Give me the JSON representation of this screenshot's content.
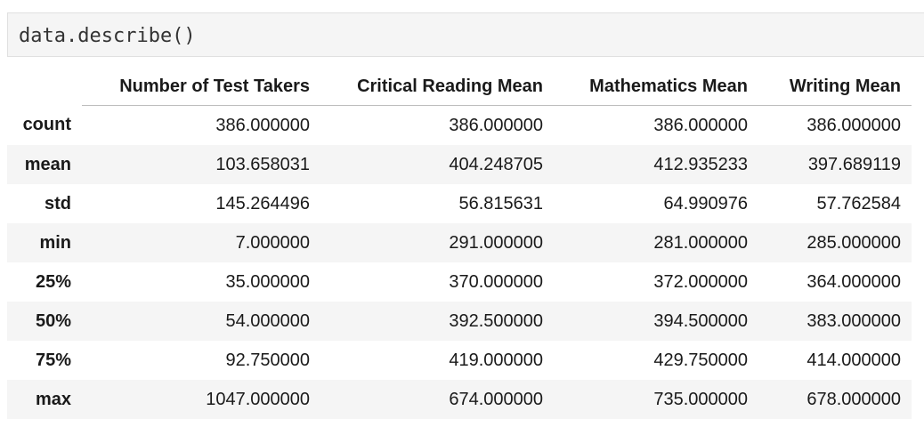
{
  "code_cell": {
    "source": "data.describe()"
  },
  "dataframe": {
    "columns": [
      "Number of Test Takers",
      "Critical Reading Mean",
      "Mathematics Mean",
      "Writing Mean"
    ],
    "rows": [
      {
        "index": "count",
        "values": [
          "386.000000",
          "386.000000",
          "386.000000",
          "386.000000"
        ]
      },
      {
        "index": "mean",
        "values": [
          "103.658031",
          "404.248705",
          "412.935233",
          "397.689119"
        ]
      },
      {
        "index": "std",
        "values": [
          "145.264496",
          "56.815631",
          "64.990976",
          "57.762584"
        ]
      },
      {
        "index": "min",
        "values": [
          "7.000000",
          "291.000000",
          "281.000000",
          "285.000000"
        ]
      },
      {
        "index": "25%",
        "values": [
          "35.000000",
          "370.000000",
          "372.000000",
          "364.000000"
        ]
      },
      {
        "index": "50%",
        "values": [
          "54.000000",
          "392.500000",
          "394.500000",
          "383.000000"
        ]
      },
      {
        "index": "75%",
        "values": [
          "92.750000",
          "419.000000",
          "429.750000",
          "414.000000"
        ]
      },
      {
        "index": "max",
        "values": [
          "1047.000000",
          "674.000000",
          "735.000000",
          "678.000000"
        ]
      }
    ]
  },
  "colors": {
    "code_background": "#f5f5f5",
    "code_border": "#e0e0e0",
    "row_stripe": "#f5f5f5",
    "header_rule": "#bdbdbd",
    "text": "#1a1a1a"
  }
}
